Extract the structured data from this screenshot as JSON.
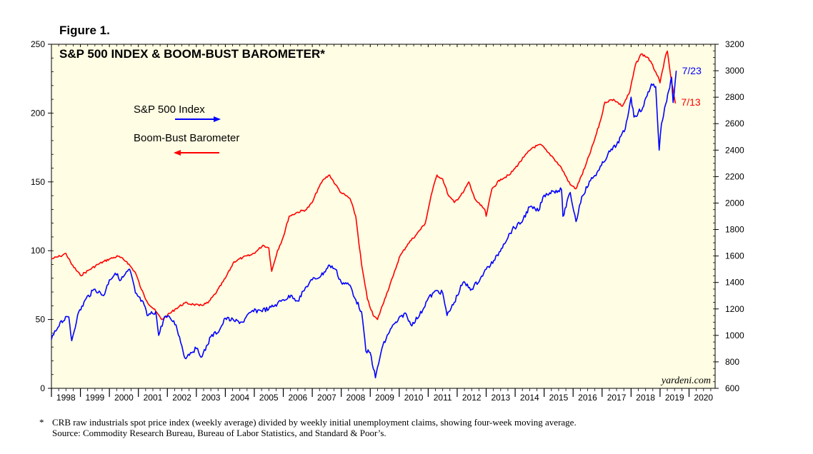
{
  "figure_label": "Figure 1.",
  "footnote": {
    "marker": "*",
    "text": "CRB raw industrials spot price index (weekly average) divided by weekly initial unemployment claims, showing four-week moving average.",
    "source": "Source: Commodity Research Bureau, Bureau of Labor Statistics, and Standard & Poor’s."
  },
  "chart_data": {
    "type": "line",
    "title": "S&P 500 INDEX & BOOM-BUST BAROMETER*",
    "watermark": "yardeni.com",
    "background_color": "#fffde3",
    "grid": false,
    "x_range": [
      1998.0,
      2020.9
    ],
    "x_tick_labels": [
      "1998",
      "1999",
      "2000",
      "2001",
      "2002",
      "2003",
      "2004",
      "2005",
      "2006",
      "2007",
      "2008",
      "2009",
      "2010",
      "2011",
      "2012",
      "2013",
      "2014",
      "2015",
      "2016",
      "2017",
      "2018",
      "2019",
      "2020"
    ],
    "left_axis": {
      "range": [
        0,
        250
      ],
      "ticks": [
        0,
        50,
        100,
        150,
        200,
        250
      ]
    },
    "right_axis": {
      "range": [
        600,
        3200
      ],
      "ticks": [
        600,
        800,
        1000,
        1200,
        1400,
        1600,
        1800,
        2000,
        2200,
        2400,
        2600,
        2800,
        3000,
        3200
      ]
    },
    "legend": [
      {
        "label": "S&P 500 Index",
        "arrow": "right",
        "color": "#0000ff"
      },
      {
        "label": "Boom-Bust Barometer",
        "arrow": "left",
        "color": "#ff0000"
      }
    ],
    "series": [
      {
        "name": "Boom-Bust Barometer",
        "axis": "left",
        "color": "#ff0000",
        "end_label": "7/13",
        "points": [
          [
            1998.0,
            94
          ],
          [
            1998.3,
            96
          ],
          [
            1998.5,
            98
          ],
          [
            1998.7,
            90
          ],
          [
            1999.0,
            82
          ],
          [
            1999.3,
            86
          ],
          [
            1999.6,
            90
          ],
          [
            2000.0,
            94
          ],
          [
            2000.3,
            96
          ],
          [
            2000.6,
            92
          ],
          [
            2000.9,
            84
          ],
          [
            2001.1,
            72
          ],
          [
            2001.3,
            63
          ],
          [
            2001.6,
            56
          ],
          [
            2001.8,
            50
          ],
          [
            2002.0,
            53
          ],
          [
            2002.3,
            58
          ],
          [
            2002.6,
            62
          ],
          [
            2002.9,
            61
          ],
          [
            2003.1,
            60
          ],
          [
            2003.4,
            62
          ],
          [
            2003.7,
            70
          ],
          [
            2004.0,
            80
          ],
          [
            2004.3,
            92
          ],
          [
            2004.6,
            95
          ],
          [
            2004.9,
            97
          ],
          [
            2005.1,
            100
          ],
          [
            2005.3,
            104
          ],
          [
            2005.5,
            102
          ],
          [
            2005.6,
            85
          ],
          [
            2005.8,
            100
          ],
          [
            2006.0,
            110
          ],
          [
            2006.2,
            125
          ],
          [
            2006.5,
            128
          ],
          [
            2006.8,
            130
          ],
          [
            2007.0,
            135
          ],
          [
            2007.2,
            145
          ],
          [
            2007.4,
            152
          ],
          [
            2007.6,
            155
          ],
          [
            2007.8,
            148
          ],
          [
            2008.0,
            142
          ],
          [
            2008.3,
            138
          ],
          [
            2008.5,
            125
          ],
          [
            2008.7,
            90
          ],
          [
            2008.9,
            65
          ],
          [
            2009.1,
            53
          ],
          [
            2009.25,
            50
          ],
          [
            2009.5,
            65
          ],
          [
            2009.8,
            82
          ],
          [
            2010.0,
            95
          ],
          [
            2010.3,
            105
          ],
          [
            2010.6,
            112
          ],
          [
            2010.9,
            120
          ],
          [
            2011.1,
            140
          ],
          [
            2011.3,
            155
          ],
          [
            2011.5,
            152
          ],
          [
            2011.7,
            140
          ],
          [
            2011.9,
            135
          ],
          [
            2012.2,
            142
          ],
          [
            2012.4,
            150
          ],
          [
            2012.6,
            138
          ],
          [
            2012.8,
            133
          ],
          [
            2012.95,
            130
          ],
          [
            2013.0,
            125
          ],
          [
            2013.2,
            145
          ],
          [
            2013.5,
            152
          ],
          [
            2013.8,
            155
          ],
          [
            2014.0,
            160
          ],
          [
            2014.3,
            168
          ],
          [
            2014.6,
            175
          ],
          [
            2014.9,
            177
          ],
          [
            2015.1,
            172
          ],
          [
            2015.3,
            168
          ],
          [
            2015.6,
            160
          ],
          [
            2015.9,
            148
          ],
          [
            2016.1,
            145
          ],
          [
            2016.4,
            160
          ],
          [
            2016.7,
            178
          ],
          [
            2016.95,
            195
          ],
          [
            2017.1,
            208
          ],
          [
            2017.4,
            210
          ],
          [
            2017.7,
            205
          ],
          [
            2017.95,
            215
          ],
          [
            2018.15,
            235
          ],
          [
            2018.35,
            243
          ],
          [
            2018.6,
            240
          ],
          [
            2018.85,
            230
          ],
          [
            2019.0,
            222
          ],
          [
            2019.15,
            238
          ],
          [
            2019.25,
            245
          ],
          [
            2019.4,
            222
          ],
          [
            2019.53,
            207
          ]
        ]
      },
      {
        "name": "S&P 500 Index",
        "axis": "right",
        "color": "#0000ff",
        "end_label": "7/23",
        "points": [
          [
            1998.0,
            970
          ],
          [
            1998.3,
            1100
          ],
          [
            1998.6,
            1140
          ],
          [
            1998.7,
            960
          ],
          [
            1998.9,
            1150
          ],
          [
            1999.2,
            1280
          ],
          [
            1999.5,
            1350
          ],
          [
            1999.8,
            1300
          ],
          [
            2000.0,
            1420
          ],
          [
            2000.2,
            1470
          ],
          [
            2000.4,
            1420
          ],
          [
            2000.7,
            1500
          ],
          [
            2000.9,
            1320
          ],
          [
            2001.2,
            1230
          ],
          [
            2001.3,
            1150
          ],
          [
            2001.6,
            1180
          ],
          [
            2001.7,
            1000
          ],
          [
            2001.9,
            1140
          ],
          [
            2002.1,
            1130
          ],
          [
            2002.3,
            1080
          ],
          [
            2002.5,
            920
          ],
          [
            2002.6,
            830
          ],
          [
            2002.8,
            870
          ],
          [
            2003.0,
            900
          ],
          [
            2003.2,
            840
          ],
          [
            2003.5,
            990
          ],
          [
            2003.8,
            1040
          ],
          [
            2004.0,
            1130
          ],
          [
            2004.3,
            1110
          ],
          [
            2004.6,
            1100
          ],
          [
            2004.9,
            1180
          ],
          [
            2005.2,
            1190
          ],
          [
            2005.5,
            1200
          ],
          [
            2005.8,
            1240
          ],
          [
            2006.0,
            1270
          ],
          [
            2006.3,
            1300
          ],
          [
            2006.5,
            1260
          ],
          [
            2006.8,
            1370
          ],
          [
            2007.0,
            1420
          ],
          [
            2007.3,
            1450
          ],
          [
            2007.6,
            1530
          ],
          [
            2007.8,
            1500
          ],
          [
            2008.0,
            1400
          ],
          [
            2008.3,
            1380
          ],
          [
            2008.5,
            1270
          ],
          [
            2008.7,
            1180
          ],
          [
            2008.85,
            880
          ],
          [
            2009.0,
            870
          ],
          [
            2009.18,
            680
          ],
          [
            2009.4,
            900
          ],
          [
            2009.7,
            1050
          ],
          [
            2009.95,
            1110
          ],
          [
            2010.2,
            1170
          ],
          [
            2010.4,
            1080
          ],
          [
            2010.7,
            1150
          ],
          [
            2011.0,
            1280
          ],
          [
            2011.3,
            1340
          ],
          [
            2011.5,
            1320
          ],
          [
            2011.65,
            1150
          ],
          [
            2011.9,
            1250
          ],
          [
            2012.2,
            1400
          ],
          [
            2012.5,
            1350
          ],
          [
            2012.8,
            1430
          ],
          [
            2013.0,
            1500
          ],
          [
            2013.3,
            1570
          ],
          [
            2013.6,
            1690
          ],
          [
            2013.9,
            1800
          ],
          [
            2014.2,
            1850
          ],
          [
            2014.5,
            1970
          ],
          [
            2014.8,
            1940
          ],
          [
            2015.0,
            2060
          ],
          [
            2015.3,
            2090
          ],
          [
            2015.6,
            2100
          ],
          [
            2015.65,
            1900
          ],
          [
            2015.9,
            2080
          ],
          [
            2016.1,
            1860
          ],
          [
            2016.3,
            2050
          ],
          [
            2016.6,
            2170
          ],
          [
            2016.9,
            2250
          ],
          [
            2017.2,
            2370
          ],
          [
            2017.5,
            2440
          ],
          [
            2017.8,
            2560
          ],
          [
            2018.0,
            2800
          ],
          [
            2018.1,
            2650
          ],
          [
            2018.4,
            2720
          ],
          [
            2018.7,
            2900
          ],
          [
            2018.85,
            2880
          ],
          [
            2018.97,
            2400
          ],
          [
            2019.05,
            2600
          ],
          [
            2019.3,
            2850
          ],
          [
            2019.4,
            2950
          ],
          [
            2019.45,
            2760
          ],
          [
            2019.56,
            3000
          ]
        ]
      }
    ]
  }
}
